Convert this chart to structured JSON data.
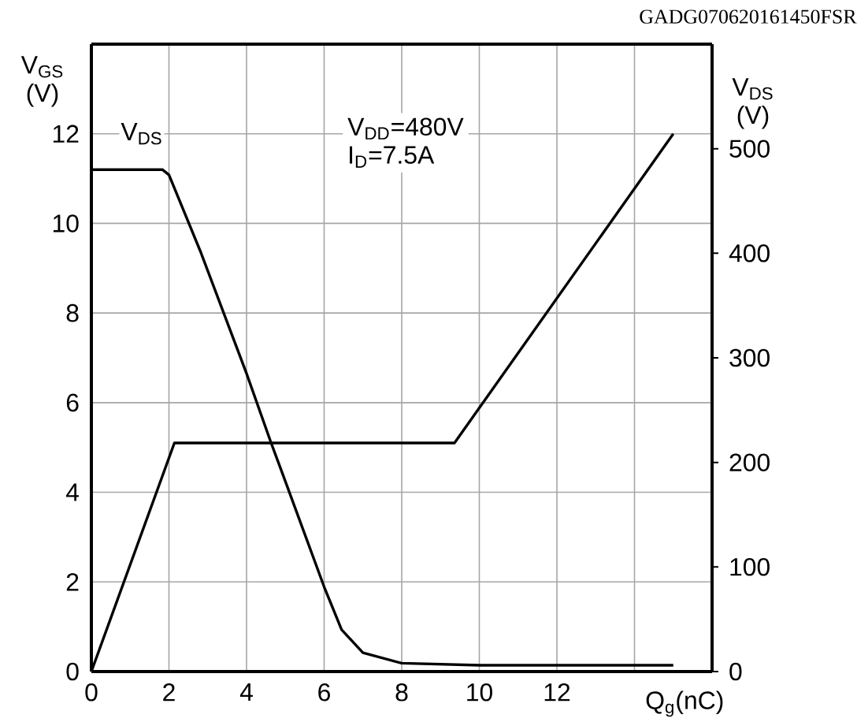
{
  "chart_data": {
    "type": "line",
    "xlabel": "Q$_{g}$(nC)",
    "ylabel": "V$_{GS}$ (V)",
    "y2label": "V$_{DS}$ (V)",
    "annotations": [
      "V$_{DD}$=480V",
      "I$_{D}$=7.5A",
      "GADG070620161450FSR"
    ],
    "xlim": [
      0,
      16
    ],
    "xticks": [
      0,
      2,
      4,
      6,
      8,
      10,
      12,
      {
        "value": 14,
        "label": null
      }
    ],
    "ylim": [
      0,
      14
    ],
    "yticks": [
      0,
      2,
      4,
      6,
      8,
      10,
      12
    ],
    "y2lim": [
      0,
      600
    ],
    "y2ticks": [
      0,
      100,
      200,
      300,
      400,
      500
    ],
    "grid": true,
    "series": [
      {
        "color": "#000000",
        "x": [
          0,
          2.14,
          9.36,
          15.0
        ],
        "values": [
          0,
          5.1,
          5.1,
          12
        ]
      },
      {
        "name": "V$_{DS}$",
        "axis": "y2",
        "color": "#000000",
        "x": [
          0,
          1.83,
          2.0,
          2.82,
          4.0,
          4.63,
          4.91,
          6.0,
          6.45,
          7.0,
          8.0,
          10.0,
          12.0,
          15.0
        ],
        "values": [
          480,
          480,
          475,
          401,
          285,
          219,
          191,
          81,
          40,
          18,
          8,
          6,
          6,
          6
        ]
      }
    ]
  }
}
